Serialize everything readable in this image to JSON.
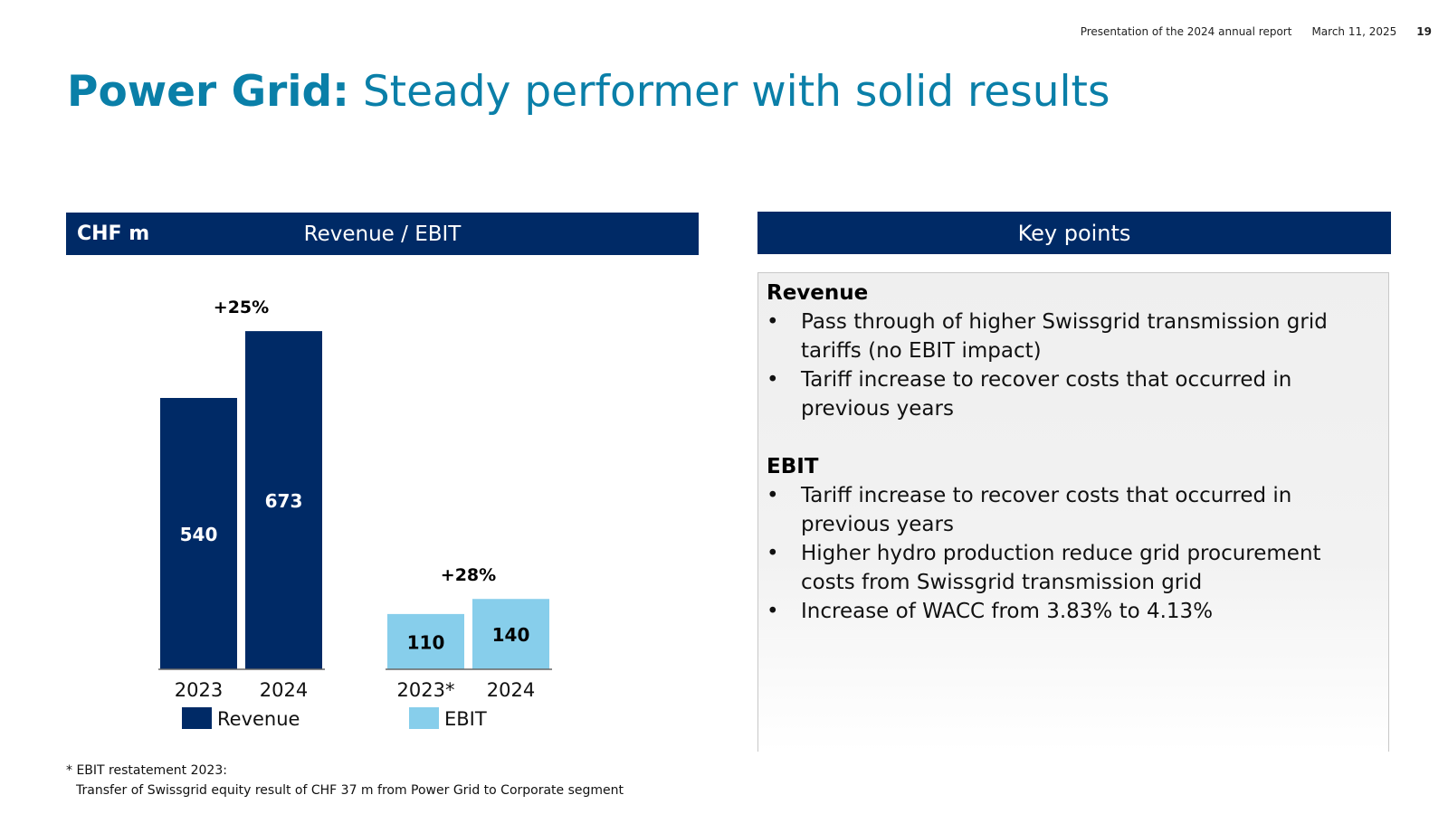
{
  "header": {
    "presentation": "Presentation of the 2024 annual report",
    "date": "March 11, 2025",
    "page_number": "19"
  },
  "title": {
    "bold": "Power Grid:",
    "rest": " Steady performer with solid results"
  },
  "chart_panel": {
    "unit": "CHF m",
    "title": "Revenue / EBIT"
  },
  "chart_data": {
    "type": "bar",
    "unit": "CHF m",
    "title": "Revenue / EBIT",
    "ylim": [
      0,
      720
    ],
    "grid": false,
    "legend_placement": "bottom",
    "groups": [
      {
        "series": "Revenue",
        "color": "#002a66",
        "label_color": "#ffffff",
        "categories": [
          "2023",
          "2024"
        ],
        "values": [
          540,
          673
        ],
        "change": "+25%"
      },
      {
        "series": "EBIT",
        "color": "#87ceeb",
        "label_color": "#000000",
        "categories": [
          "2023*",
          "2024"
        ],
        "values": [
          110,
          140
        ],
        "change": "+28%"
      }
    ]
  },
  "key_points": {
    "title": "Key points",
    "sections": [
      {
        "heading": "Revenue",
        "bullets": [
          "Pass through of higher Swissgrid transmission grid tariffs (no EBIT impact)",
          "Tariff increase to recover costs that occurred in previous years"
        ]
      },
      {
        "heading": "EBIT",
        "bullets": [
          "Tariff increase to recover costs that occurred in previous years",
          "Higher hydro production reduce grid procurement costs from Swissgrid transmission grid",
          "Increase of WACC from 3.83% to 4.13%"
        ]
      }
    ]
  },
  "footnote": {
    "line1": "* EBIT restatement 2023:",
    "line2": "Transfer of Swissgrid equity result of CHF 37 m from Power Grid to Corporate segment"
  }
}
